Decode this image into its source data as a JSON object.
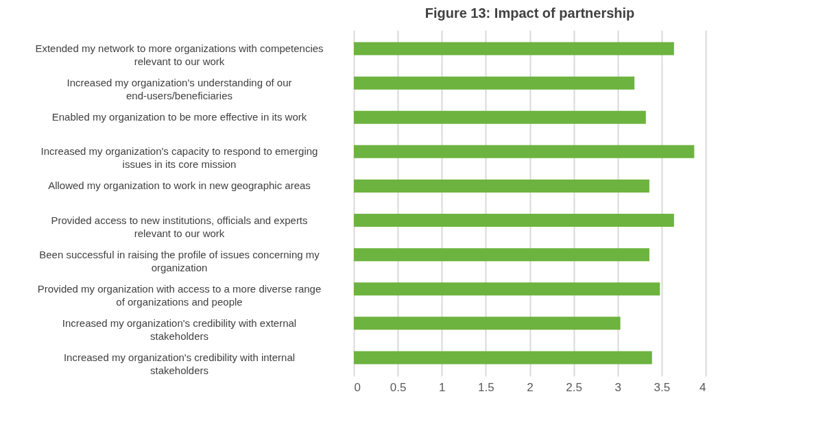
{
  "chart_data": {
    "type": "bar",
    "orientation": "horizontal",
    "title": "Figure 13: Impact of partnership",
    "categories": [
      "Extended my network to more organizations with competencies relevant to our work",
      "Increased my organization's understanding of our end-users/beneficiaries",
      "Enabled my organization to be more effective in its work",
      "Increased my organization's capacity to respond to emerging issues in its core mission",
      "Allowed my organization to work in new geographic areas",
      "Provided access to new institutions, officials and experts relevant to our work",
      "Been successful in raising the profile of issues concerning my organization",
      "Provided my organization with access to a more diverse range of organizations and people",
      "Increased my organization's credibility with external stakeholders",
      "Increased my organization's credibility with internal stakeholders"
    ],
    "values": [
      3.64,
      3.19,
      3.32,
      3.87,
      3.36,
      3.64,
      3.36,
      3.48,
      3.03,
      3.39
    ],
    "color": "#6db33f",
    "xlim": [
      0,
      4
    ],
    "xticks": [
      0,
      0.5,
      1,
      1.5,
      2,
      2.5,
      3,
      3.5,
      4
    ],
    "grid": "x"
  }
}
